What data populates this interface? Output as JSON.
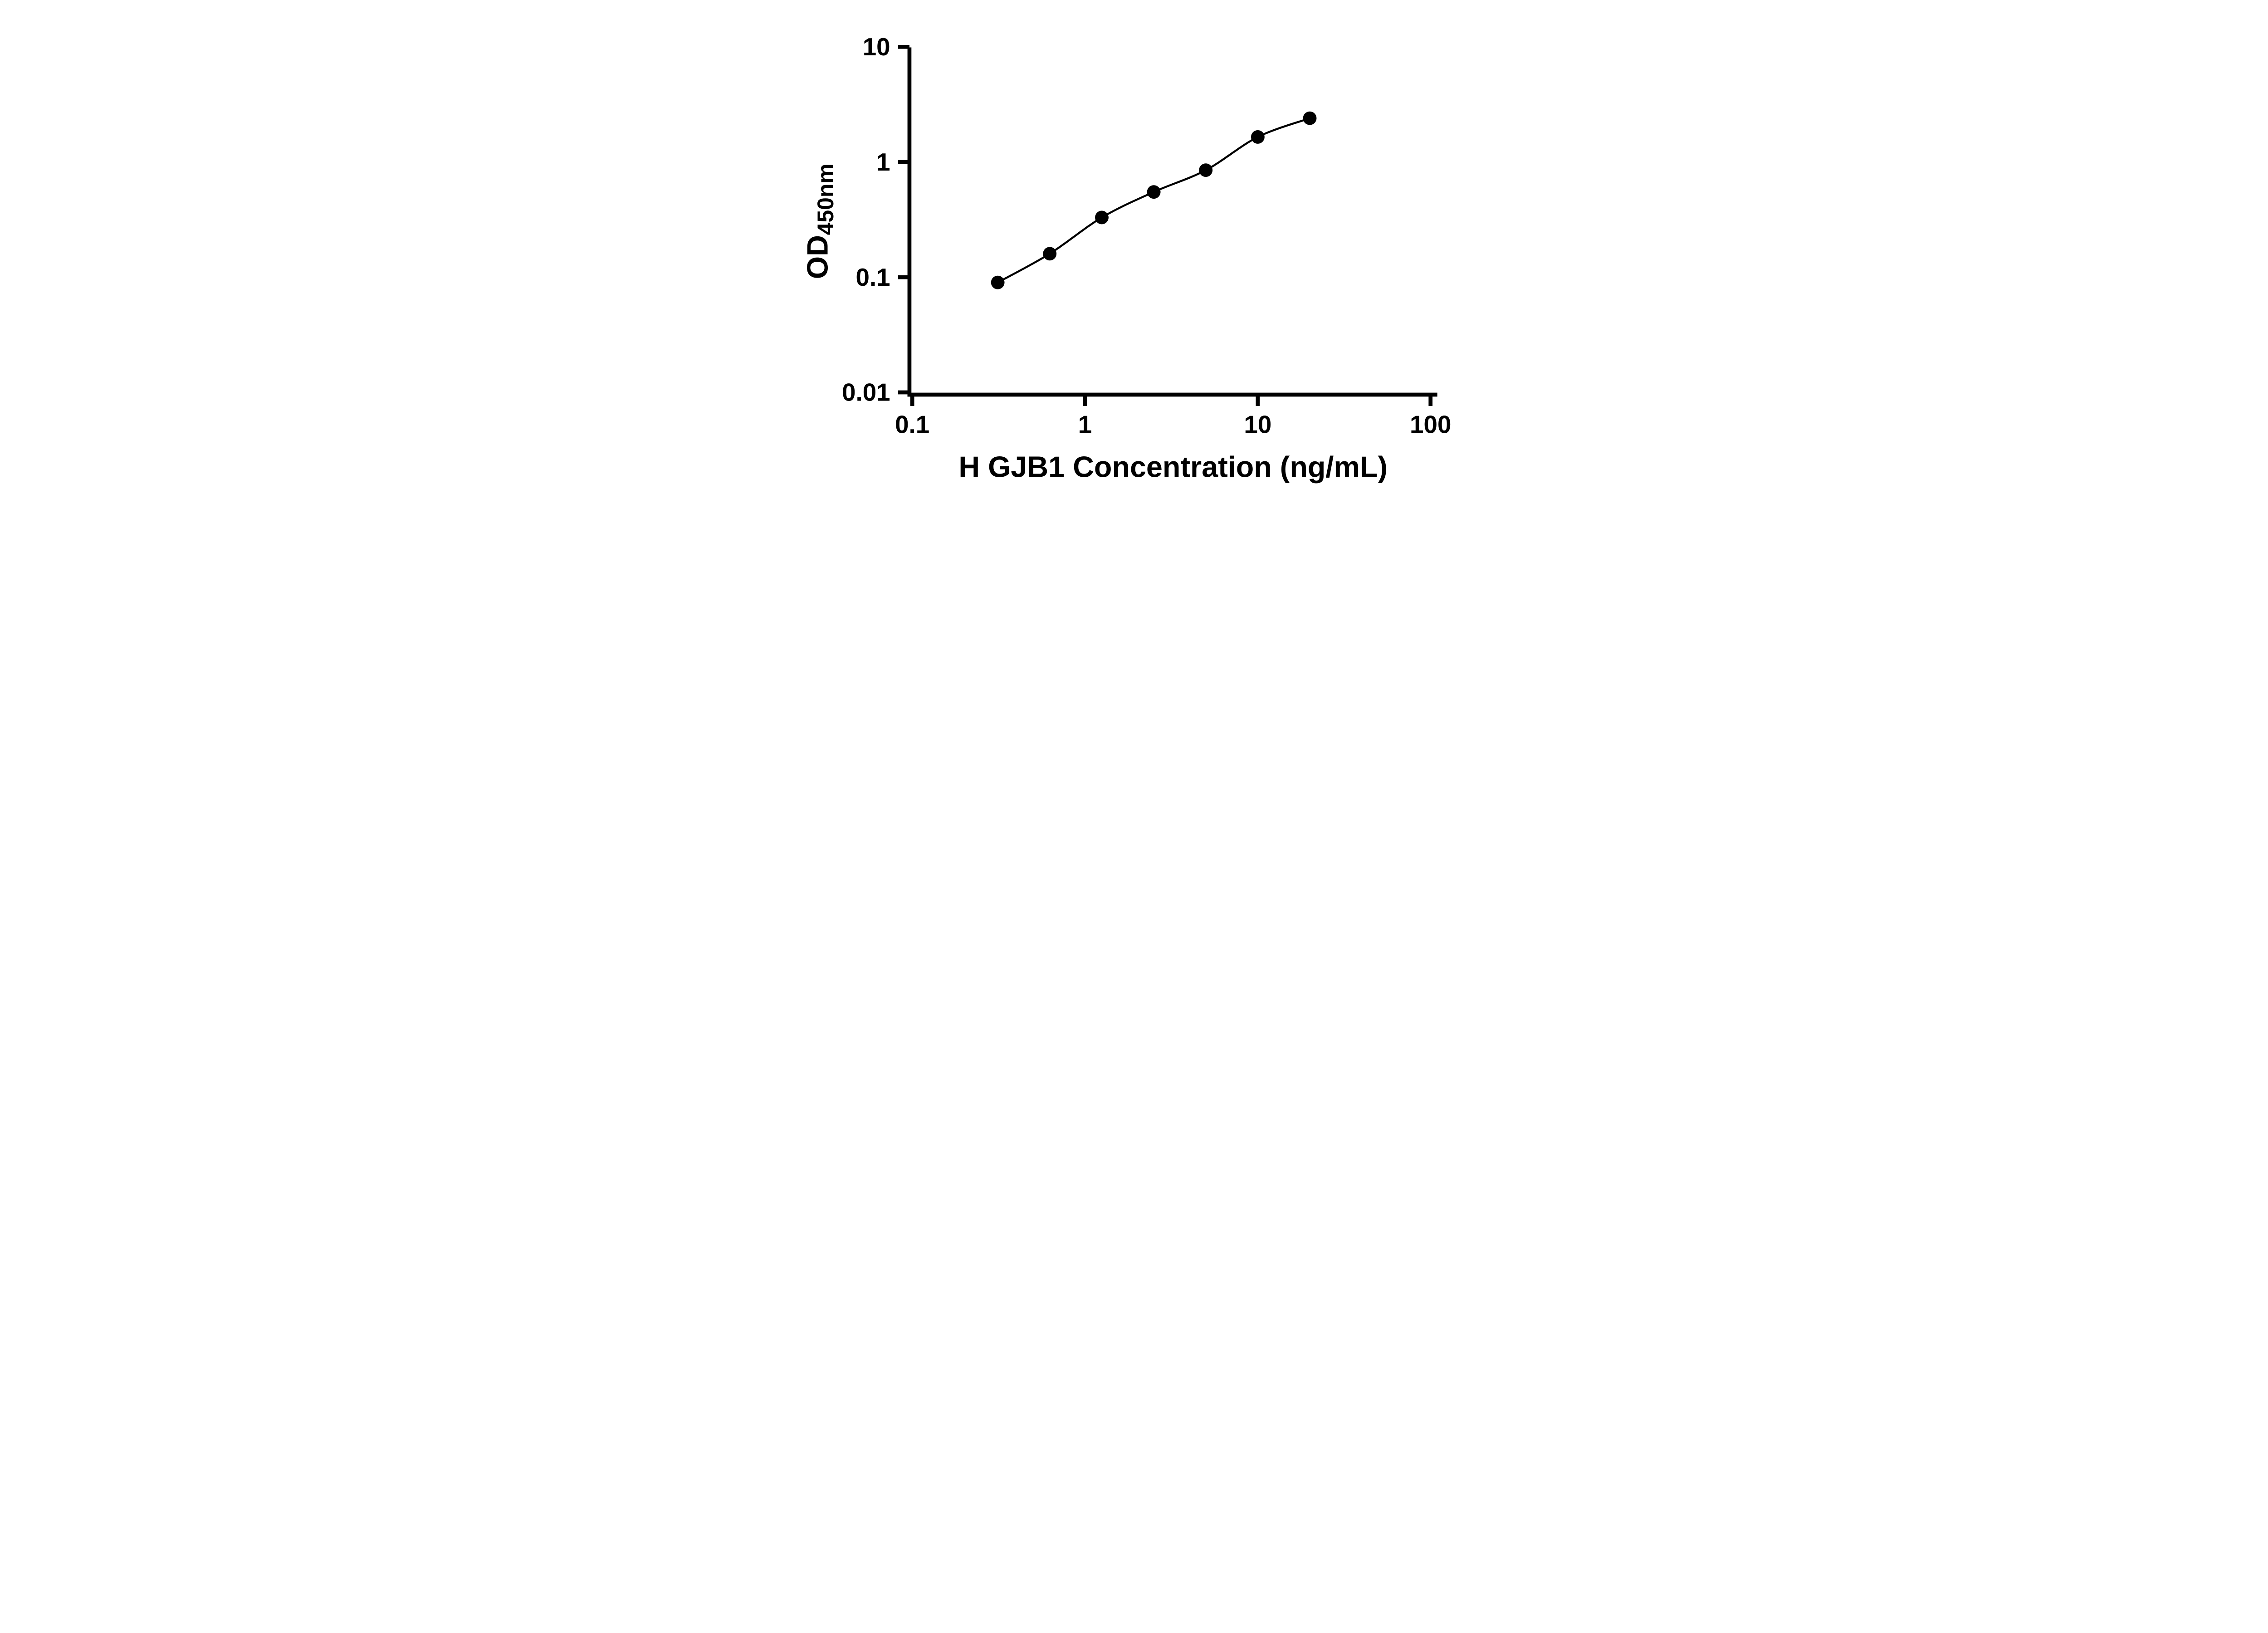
{
  "page": {
    "background": "#ffffff"
  },
  "chart_data": {
    "type": "scatter",
    "subtype": "log-log standard curve with fitted line",
    "title": "",
    "xlabel": "H GJB1 Concentration (ng/mL)",
    "ylabel": "OD450nm",
    "ylabel_base": "OD",
    "ylabel_subscript": "450nm",
    "x_scale": "log",
    "y_scale": "log",
    "xlim": [
      0.1,
      100
    ],
    "ylim": [
      0.01,
      10
    ],
    "grid": false,
    "legend": null,
    "marker_color": "#000000",
    "line_color": "#000000",
    "x_ticks": [
      {
        "value": 0.1,
        "label": "0.1"
      },
      {
        "value": 1,
        "label": "1"
      },
      {
        "value": 10,
        "label": "10"
      },
      {
        "value": 100,
        "label": "100"
      }
    ],
    "y_ticks": [
      {
        "value": 0.01,
        "label": "0.01"
      },
      {
        "value": 0.1,
        "label": "0.1"
      },
      {
        "value": 1,
        "label": "1"
      },
      {
        "value": 10,
        "label": "10"
      }
    ],
    "points": [
      {
        "x": 0.3125,
        "y": 0.09
      },
      {
        "x": 0.625,
        "y": 0.16
      },
      {
        "x": 1.25,
        "y": 0.33
      },
      {
        "x": 2.5,
        "y": 0.55
      },
      {
        "x": 5,
        "y": 0.85
      },
      {
        "x": 10,
        "y": 1.65
      },
      {
        "x": 20,
        "y": 2.4
      }
    ]
  }
}
